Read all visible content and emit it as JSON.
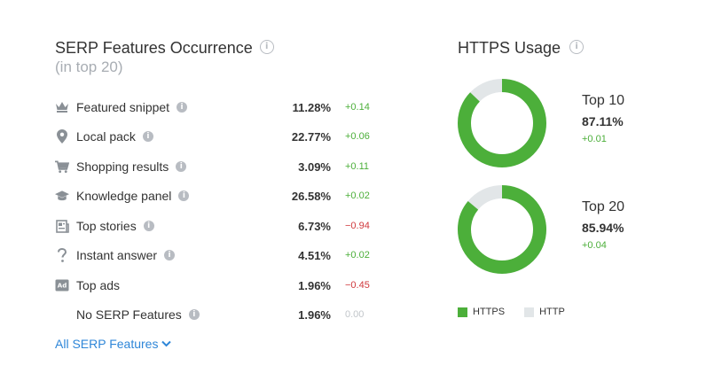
{
  "serp": {
    "title": "SERP Features Occurrence",
    "subtitle": "(in top 20)",
    "info": "i",
    "rows": [
      {
        "label": "Featured snippet",
        "pct": "11.28%",
        "delta": "+0.14",
        "trend": "pos",
        "icon": "crown-icon"
      },
      {
        "label": "Local pack",
        "pct": "22.77%",
        "delta": "+0.06",
        "trend": "pos",
        "icon": "map-pin-icon"
      },
      {
        "label": "Shopping results",
        "pct": "3.09%",
        "delta": "+0.11",
        "trend": "pos",
        "icon": "cart-icon"
      },
      {
        "label": "Knowledge panel",
        "pct": "26.58%",
        "delta": "+0.02",
        "trend": "pos",
        "icon": "graduation-cap-icon"
      },
      {
        "label": "Top stories",
        "pct": "6.73%",
        "delta": "−0.94",
        "trend": "neg",
        "icon": "newspaper-icon"
      },
      {
        "label": "Instant answer",
        "pct": "4.51%",
        "delta": "+0.02",
        "trend": "pos",
        "icon": "question-mark-icon"
      },
      {
        "label": "Top ads",
        "pct": "1.96%",
        "delta": "−0.45",
        "trend": "neg",
        "icon": "ad-badge-icon"
      },
      {
        "label": "No SERP Features",
        "pct": "1.96%",
        "delta": "0.00",
        "trend": "zero",
        "icon": ""
      }
    ],
    "all_link": "All SERP Features"
  },
  "https": {
    "title": "HTTPS Usage",
    "info": "i",
    "donuts": [
      {
        "label": "Top 10",
        "value": "87.11%",
        "change": "+0.01",
        "fraction": 0.8711
      },
      {
        "label": "Top 20",
        "value": "85.94%",
        "change": "+0.04",
        "fraction": 0.8594
      }
    ],
    "legend": [
      {
        "label": "HTTPS",
        "color": "#4caf3a"
      },
      {
        "label": "HTTP",
        "color": "#e2e6e8"
      }
    ]
  },
  "colors": {
    "https": "#4caf3a",
    "http": "#e2e6e8",
    "link": "#2e86d8",
    "positive": "#4caf3a",
    "negative": "#d0393d"
  }
}
